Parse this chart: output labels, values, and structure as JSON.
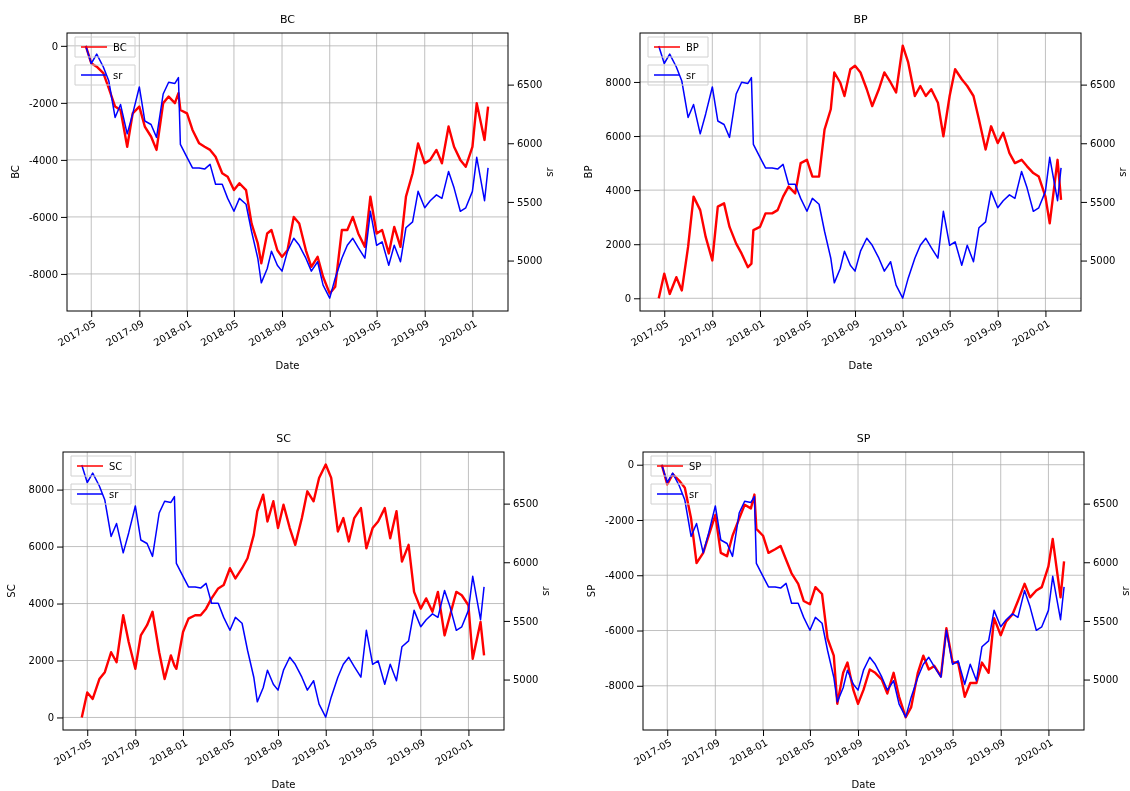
{
  "chart_data": [
    {
      "type": "line",
      "title": "BC",
      "xlabel": "Date",
      "ylabel": "BC",
      "y2label": "sr",
      "grid": true,
      "legend": "top left",
      "x": [
        "2017-04-17",
        "2017-05-01",
        "2017-05-15",
        "2017-06-01",
        "2017-06-15",
        "2017-07-01",
        "2017-07-15",
        "2017-08-01",
        "2017-08-15",
        "2017-09-01",
        "2017-09-15",
        "2017-10-01",
        "2017-10-15",
        "2017-11-01",
        "2017-11-15",
        "2017-12-01",
        "2017-12-10",
        "2017-12-15",
        "2018-01-01",
        "2018-01-15",
        "2018-02-01",
        "2018-02-15",
        "2018-03-01",
        "2018-03-15",
        "2018-04-01",
        "2018-04-15",
        "2018-05-01",
        "2018-05-15",
        "2018-06-01",
        "2018-06-15",
        "2018-07-01",
        "2018-07-10",
        "2018-07-25",
        "2018-08-05",
        "2018-08-20",
        "2018-09-01",
        "2018-09-15",
        "2018-10-01",
        "2018-10-15",
        "2018-11-01",
        "2018-11-15",
        "2018-12-01",
        "2018-12-15",
        "2019-01-01",
        "2019-01-15",
        "2019-02-01",
        "2019-02-15",
        "2019-03-01",
        "2019-03-15",
        "2019-04-01",
        "2019-04-15",
        "2019-05-01",
        "2019-05-15",
        "2019-06-01",
        "2019-06-15",
        "2019-07-01",
        "2019-07-15",
        "2019-08-01",
        "2019-08-15",
        "2019-09-01",
        "2019-09-15",
        "2019-10-01",
        "2019-10-15",
        "2019-11-01",
        "2019-11-15",
        "2019-12-01",
        "2019-12-15",
        "2020-01-01",
        "2020-01-12",
        "2020-02-01",
        "2020-02-10"
      ],
      "xlim": [
        "2017-02-28",
        "2020-04-01"
      ],
      "xticks": [
        "2017-05",
        "2017-09",
        "2018-01",
        "2018-05",
        "2018-09",
        "2019-01",
        "2019-05",
        "2019-09",
        "2020-01"
      ],
      "ylim": [
        -9300,
        450
      ],
      "yticks": [
        -8000,
        -6000,
        -4000,
        -2000,
        0
      ],
      "y2lim": [
        4570,
        6940
      ],
      "y2ticks": [
        5000,
        5500,
        6000,
        6500
      ],
      "series": [
        {
          "name": "BC",
          "color": "#ff0000",
          "values": [
            0,
            -610,
            -730,
            -960,
            -1490,
            -2130,
            -2250,
            -3540,
            -2370,
            -2130,
            -2830,
            -3180,
            -3650,
            -2010,
            -1780,
            -2010,
            -1660,
            -2250,
            -2370,
            -2950,
            -3420,
            -3540,
            -3650,
            -3890,
            -4470,
            -4590,
            -5060,
            -4820,
            -5060,
            -6230,
            -6930,
            -7630,
            -6580,
            -6460,
            -7170,
            -7400,
            -7170,
            -6000,
            -6230,
            -7170,
            -7750,
            -7400,
            -8100,
            -8690,
            -8450,
            -6460,
            -6460,
            -6000,
            -6580,
            -7050,
            -5290,
            -6580,
            -6460,
            -7280,
            -6350,
            -7050,
            -5290,
            -4470,
            -3420,
            -4120,
            -4000,
            -3650,
            -4120,
            -2830,
            -3540,
            -4000,
            -4240,
            -3540,
            -2010,
            -3300,
            -2130
          ]
        },
        {
          "name": "sr",
          "color": "#0000ff",
          "axis": "y2",
          "values": [
            6830,
            6680,
            6760,
            6650,
            6530,
            6220,
            6330,
            6080,
            6250,
            6480,
            6190,
            6160,
            6050,
            6420,
            6520,
            6510,
            6560,
            5990,
            5880,
            5790,
            5790,
            5780,
            5820,
            5650,
            5650,
            5530,
            5420,
            5530,
            5480,
            5250,
            5020,
            4810,
            4930,
            5080,
            4960,
            4910,
            5080,
            5190,
            5130,
            5020,
            4910,
            4990,
            4790,
            4680,
            4850,
            5020,
            5130,
            5190,
            5110,
            5020,
            5420,
            5130,
            5160,
            4960,
            5130,
            4990,
            5280,
            5330,
            5590,
            5450,
            5510,
            5560,
            5530,
            5760,
            5620,
            5420,
            5450,
            5590,
            5880,
            5510,
            5790
          ]
        }
      ]
    },
    {
      "type": "line",
      "title": "BP",
      "xlabel": "Date",
      "ylabel": "BP",
      "y2label": "sr",
      "grid": true,
      "legend": "top left",
      "x": [
        "2017-04-17",
        "2017-05-01",
        "2017-05-15",
        "2017-06-01",
        "2017-06-15",
        "2017-07-01",
        "2017-07-15",
        "2017-08-01",
        "2017-08-15",
        "2017-09-01",
        "2017-09-15",
        "2017-10-01",
        "2017-10-15",
        "2017-11-01",
        "2017-11-15",
        "2017-12-01",
        "2017-12-10",
        "2017-12-15",
        "2018-01-01",
        "2018-01-15",
        "2018-02-01",
        "2018-02-15",
        "2018-03-01",
        "2018-03-15",
        "2018-04-01",
        "2018-04-15",
        "2018-05-01",
        "2018-05-15",
        "2018-06-01",
        "2018-06-15",
        "2018-07-01",
        "2018-07-10",
        "2018-07-25",
        "2018-08-05",
        "2018-08-20",
        "2018-09-01",
        "2018-09-15",
        "2018-10-01",
        "2018-10-15",
        "2018-11-01",
        "2018-11-15",
        "2018-12-01",
        "2018-12-15",
        "2019-01-01",
        "2019-01-15",
        "2019-02-01",
        "2019-02-15",
        "2019-03-01",
        "2019-03-15",
        "2019-04-01",
        "2019-04-15",
        "2019-05-01",
        "2019-05-15",
        "2019-06-01",
        "2019-06-15",
        "2019-07-01",
        "2019-07-15",
        "2019-08-01",
        "2019-08-15",
        "2019-09-01",
        "2019-09-15",
        "2019-10-01",
        "2019-10-15",
        "2019-11-01",
        "2019-11-15",
        "2019-12-01",
        "2019-12-15",
        "2020-01-01",
        "2020-01-12",
        "2020-02-01",
        "2020-02-10"
      ],
      "xlim": [
        "2017-02-28",
        "2020-04-01"
      ],
      "xticks": [
        "2017-05",
        "2017-09",
        "2018-01",
        "2018-05",
        "2018-09",
        "2019-01",
        "2019-05",
        "2019-09",
        "2020-01"
      ],
      "ylim": [
        -470,
        9810
      ],
      "yticks": [
        0,
        2000,
        4000,
        6000,
        8000
      ],
      "y2lim": [
        4570,
        6940
      ],
      "y2ticks": [
        5000,
        5500,
        6000,
        6500
      ],
      "series": [
        {
          "name": "BP",
          "color": "#ff0000",
          "values": [
            0,
            910,
            160,
            780,
            290,
            1900,
            3760,
            3260,
            2270,
            1400,
            3390,
            3510,
            2640,
            2020,
            1650,
            1150,
            1280,
            2520,
            2640,
            3140,
            3140,
            3260,
            3760,
            4130,
            3880,
            5000,
            5120,
            4500,
            4500,
            6240,
            6990,
            8350,
            7980,
            7480,
            8470,
            8600,
            8350,
            7730,
            7110,
            7730,
            8350,
            7980,
            7610,
            9340,
            8720,
            7480,
            7850,
            7480,
            7730,
            7230,
            5990,
            7480,
            8470,
            8100,
            7850,
            7480,
            6610,
            5500,
            6360,
            5740,
            6120,
            5370,
            5000,
            5120,
            4880,
            4630,
            4500,
            3760,
            2770,
            5120,
            3640
          ]
        },
        {
          "name": "sr",
          "color": "#0000ff",
          "axis": "y2",
          "values": [
            6830,
            6680,
            6760,
            6650,
            6530,
            6220,
            6330,
            6080,
            6250,
            6480,
            6190,
            6160,
            6050,
            6420,
            6520,
            6510,
            6560,
            5990,
            5880,
            5790,
            5790,
            5780,
            5820,
            5650,
            5650,
            5530,
            5420,
            5530,
            5480,
            5250,
            5020,
            4810,
            4930,
            5080,
            4960,
            4910,
            5080,
            5190,
            5130,
            5020,
            4910,
            4990,
            4790,
            4680,
            4850,
            5020,
            5130,
            5190,
            5110,
            5020,
            5420,
            5130,
            5160,
            4960,
            5130,
            4990,
            5280,
            5330,
            5590,
            5450,
            5510,
            5560,
            5530,
            5760,
            5620,
            5420,
            5450,
            5590,
            5880,
            5510,
            5790
          ]
        }
      ]
    },
    {
      "type": "line",
      "title": "SC",
      "xlabel": "Date",
      "ylabel": "SC",
      "y2label": "sr",
      "grid": true,
      "legend": "top left",
      "x": [
        "2017-04-17",
        "2017-05-01",
        "2017-05-15",
        "2017-06-01",
        "2017-06-15",
        "2017-07-01",
        "2017-07-15",
        "2017-08-01",
        "2017-08-15",
        "2017-09-01",
        "2017-09-15",
        "2017-10-01",
        "2017-10-15",
        "2017-11-01",
        "2017-11-15",
        "2017-12-01",
        "2017-12-10",
        "2017-12-15",
        "2018-01-01",
        "2018-01-15",
        "2018-02-01",
        "2018-02-15",
        "2018-03-01",
        "2018-03-15",
        "2018-04-01",
        "2018-04-15",
        "2018-05-01",
        "2018-05-15",
        "2018-06-01",
        "2018-06-15",
        "2018-07-01",
        "2018-07-10",
        "2018-07-25",
        "2018-08-05",
        "2018-08-20",
        "2018-09-01",
        "2018-09-15",
        "2018-10-01",
        "2018-10-15",
        "2018-11-01",
        "2018-11-15",
        "2018-12-01",
        "2018-12-15",
        "2019-01-01",
        "2019-01-15",
        "2019-02-01",
        "2019-02-15",
        "2019-03-01",
        "2019-03-15",
        "2019-04-01",
        "2019-04-15",
        "2019-05-01",
        "2019-05-15",
        "2019-06-01",
        "2019-06-15",
        "2019-07-01",
        "2019-07-15",
        "2019-08-01",
        "2019-08-15",
        "2019-09-01",
        "2019-09-15",
        "2019-10-01",
        "2019-10-15",
        "2019-11-01",
        "2019-11-15",
        "2019-12-01",
        "2019-12-15",
        "2020-01-01",
        "2020-01-12",
        "2020-02-01",
        "2020-02-10"
      ],
      "xlim": [
        "2017-02-28",
        "2020-04-01"
      ],
      "xticks": [
        "2017-05",
        "2017-09",
        "2018-01",
        "2018-05",
        "2018-09",
        "2019-01",
        "2019-05",
        "2019-09",
        "2020-01"
      ],
      "ylim": [
        -440,
        9320
      ],
      "yticks": [
        0,
        2000,
        4000,
        6000,
        8000
      ],
      "y2lim": [
        4570,
        6940
      ],
      "y2ticks": [
        5000,
        5500,
        6000,
        6500
      ],
      "series": [
        {
          "name": "SC",
          "color": "#ff0000",
          "values": [
            0,
            880,
            650,
            1350,
            1590,
            2290,
            1940,
            3590,
            2650,
            1710,
            2880,
            3240,
            3710,
            2290,
            1350,
            2180,
            1820,
            1710,
            3000,
            3470,
            3590,
            3590,
            3820,
            4180,
            4530,
            4650,
            5240,
            4880,
            5240,
            5590,
            6410,
            7240,
            7820,
            6880,
            7590,
            6650,
            7470,
            6650,
            6060,
            7000,
            7940,
            7590,
            8410,
            8880,
            8410,
            6530,
            7000,
            6180,
            7000,
            7350,
            5940,
            6650,
            6880,
            7350,
            6290,
            7240,
            5470,
            6060,
            4410,
            3820,
            4180,
            3710,
            4410,
            2880,
            3590,
            4410,
            4290,
            3940,
            2060,
            3350,
            2180
          ]
        },
        {
          "name": "sr",
          "color": "#0000ff",
          "axis": "y2",
          "values": [
            6830,
            6680,
            6760,
            6650,
            6530,
            6220,
            6330,
            6080,
            6250,
            6480,
            6190,
            6160,
            6050,
            6420,
            6520,
            6510,
            6560,
            5990,
            5880,
            5790,
            5790,
            5780,
            5820,
            5650,
            5650,
            5530,
            5420,
            5530,
            5480,
            5250,
            5020,
            4810,
            4930,
            5080,
            4960,
            4910,
            5080,
            5190,
            5130,
            5020,
            4910,
            4990,
            4790,
            4680,
            4850,
            5020,
            5130,
            5190,
            5110,
            5020,
            5420,
            5130,
            5160,
            4960,
            5130,
            4990,
            5280,
            5330,
            5590,
            5450,
            5510,
            5560,
            5530,
            5760,
            5620,
            5420,
            5450,
            5590,
            5880,
            5510,
            5790
          ]
        }
      ]
    },
    {
      "type": "line",
      "title": "SP",
      "xlabel": "Date",
      "ylabel": "SP",
      "y2label": "sr",
      "grid": true,
      "legend": "top left",
      "x": [
        "2017-04-17",
        "2017-05-01",
        "2017-05-15",
        "2017-06-01",
        "2017-06-15",
        "2017-07-01",
        "2017-07-15",
        "2017-08-01",
        "2017-08-15",
        "2017-09-01",
        "2017-09-15",
        "2017-10-01",
        "2017-10-15",
        "2017-11-01",
        "2017-11-15",
        "2017-12-01",
        "2017-12-10",
        "2017-12-15",
        "2018-01-01",
        "2018-01-15",
        "2018-02-01",
        "2018-02-15",
        "2018-03-01",
        "2018-03-15",
        "2018-04-01",
        "2018-04-15",
        "2018-05-01",
        "2018-05-15",
        "2018-06-01",
        "2018-06-15",
        "2018-07-01",
        "2018-07-10",
        "2018-07-25",
        "2018-08-05",
        "2018-08-20",
        "2018-09-01",
        "2018-09-15",
        "2018-10-01",
        "2018-10-15",
        "2018-11-01",
        "2018-11-15",
        "2018-12-01",
        "2018-12-15",
        "2019-01-01",
        "2019-01-15",
        "2019-02-01",
        "2019-02-15",
        "2019-03-01",
        "2019-03-15",
        "2019-04-01",
        "2019-04-15",
        "2019-05-01",
        "2019-05-15",
        "2019-06-01",
        "2019-06-15",
        "2019-07-01",
        "2019-07-15",
        "2019-08-01",
        "2019-08-15",
        "2019-09-01",
        "2019-09-15",
        "2019-10-01",
        "2019-10-15",
        "2019-11-01",
        "2019-11-15",
        "2019-12-01",
        "2019-12-15",
        "2020-01-01",
        "2020-01-12",
        "2020-02-01",
        "2020-02-10"
      ],
      "xlim": [
        "2017-02-28",
        "2020-04-01"
      ],
      "xticks": [
        "2017-05",
        "2017-09",
        "2018-01",
        "2018-05",
        "2018-09",
        "2019-01",
        "2019-05",
        "2019-09",
        "2020-01"
      ],
      "ylim": [
        -9600,
        460
      ],
      "yticks": [
        -8000,
        -6000,
        -4000,
        -2000,
        0
      ],
      "y2lim": [
        4570,
        6940
      ],
      "y2ticks": [
        5000,
        5500,
        6000,
        6500
      ],
      "series": [
        {
          "name": "SP",
          "color": "#ff0000",
          "values": [
            0,
            -710,
            -340,
            -580,
            -830,
            -1950,
            -3560,
            -3190,
            -2570,
            -1820,
            -3190,
            -3310,
            -2570,
            -1950,
            -1450,
            -1580,
            -1080,
            -2320,
            -2570,
            -3190,
            -3060,
            -2940,
            -3440,
            -3930,
            -4310,
            -4930,
            -5050,
            -4430,
            -4680,
            -6290,
            -6910,
            -8650,
            -7530,
            -7160,
            -8150,
            -8650,
            -8150,
            -7410,
            -7530,
            -7780,
            -8280,
            -7530,
            -8400,
            -9140,
            -8770,
            -7530,
            -6910,
            -7410,
            -7280,
            -7660,
            -5920,
            -7160,
            -7160,
            -8400,
            -7900,
            -7900,
            -7160,
            -7530,
            -5550,
            -6170,
            -5670,
            -5420,
            -4930,
            -4310,
            -4800,
            -4550,
            -4430,
            -3680,
            -2690,
            -4800,
            -3500
          ]
        },
        {
          "name": "sr",
          "color": "#0000ff",
          "axis": "y2",
          "values": [
            6830,
            6680,
            6760,
            6650,
            6530,
            6220,
            6330,
            6080,
            6250,
            6480,
            6190,
            6160,
            6050,
            6420,
            6520,
            6510,
            6560,
            5990,
            5880,
            5790,
            5790,
            5780,
            5820,
            5650,
            5650,
            5530,
            5420,
            5530,
            5480,
            5250,
            5020,
            4810,
            4930,
            5080,
            4960,
            4910,
            5080,
            5190,
            5130,
            5020,
            4910,
            4990,
            4790,
            4680,
            4850,
            5020,
            5130,
            5190,
            5110,
            5020,
            5420,
            5130,
            5160,
            4960,
            5130,
            4990,
            5280,
            5330,
            5590,
            5450,
            5510,
            5560,
            5530,
            5760,
            5620,
            5420,
            5450,
            5590,
            5880,
            5510,
            5790
          ]
        }
      ]
    }
  ]
}
